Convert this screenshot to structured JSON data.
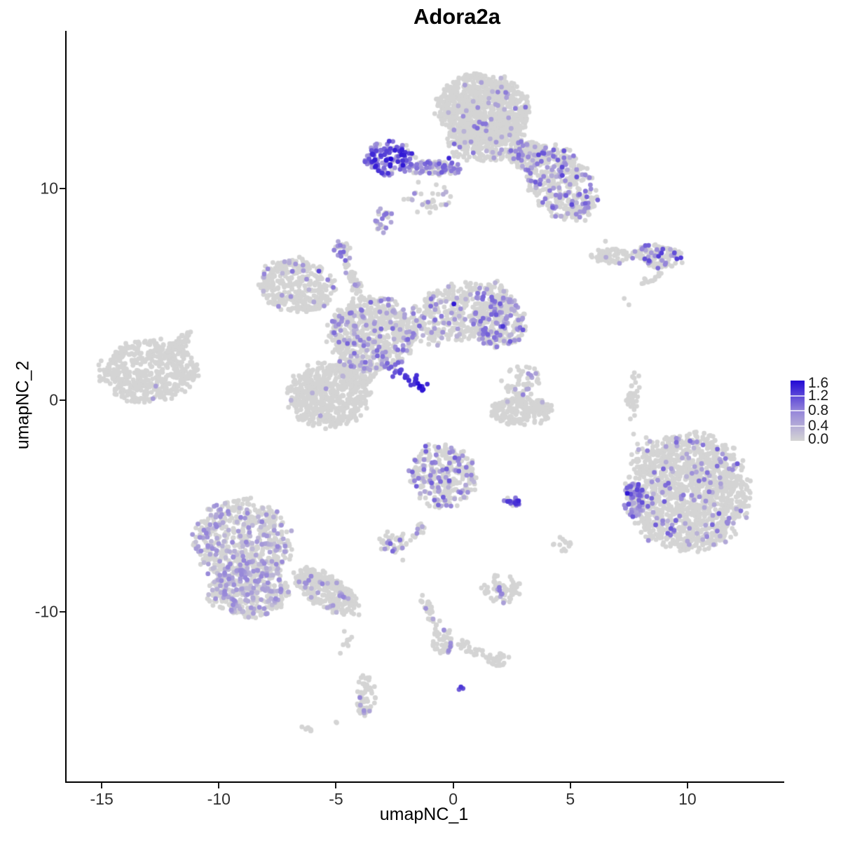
{
  "chart_data": {
    "type": "scatter",
    "title": "Adora2a",
    "xlabel": "umapNC_1",
    "ylabel": "umapNC_2",
    "x_ticks": [
      -15,
      -10,
      -5,
      0,
      5,
      10
    ],
    "y_ticks": [
      10,
      0,
      -10
    ],
    "x_range": [
      -16.5,
      14.1
    ],
    "y_range": [
      -18.0,
      17.4
    ],
    "grid": false,
    "legend": {
      "position": "right",
      "min": 0.0,
      "max": 1.6,
      "ticks": [
        "1.6",
        "1.2",
        "0.8",
        "0.4",
        "0.0"
      ],
      "inner_tick_values": [
        0.4,
        0.8,
        1.2
      ]
    },
    "colors": {
      "low": "#d4d4d4",
      "mid": "#9484da",
      "high": "#2209d5",
      "background": "#ffffff",
      "axis": "#000000"
    },
    "point_radius": 3.4,
    "clusters": [
      {
        "name": "top-cap-upper",
        "x": 1.28,
        "y": 13.71,
        "rx": 1.97,
        "ry": 1.66,
        "rot": 0,
        "n": 950,
        "f": 0.05,
        "v": [
          0.3,
          1.0
        ]
      },
      {
        "name": "top-cap-lower",
        "x": 1.43,
        "y": 12.15,
        "rx": 1.73,
        "ry": 0.93,
        "rot": 0,
        "n": 280,
        "f": 0.06,
        "v": [
          0.3,
          1.0
        ]
      },
      {
        "name": "top-right-wing",
        "x": 4.57,
        "y": 10.26,
        "rx": 1.85,
        "ry": 1.39,
        "rot": 50,
        "n": 420,
        "f": 0.22,
        "v": [
          0.3,
          1.2
        ]
      },
      {
        "name": "top-wing-connector",
        "x": 3.22,
        "y": 11.59,
        "rx": 0.84,
        "ry": 0.73,
        "rot": 0,
        "n": 140,
        "f": 0.18,
        "v": [
          0.3,
          1.0
        ]
      },
      {
        "name": "top-purple-bridge",
        "x": -0.75,
        "y": 10.96,
        "rx": 1.19,
        "ry": 0.33,
        "rot": 0,
        "n": 90,
        "f": 0.5,
        "v": [
          0.4,
          1.1
        ]
      },
      {
        "name": "top-dense-purple-blob",
        "x": -2.69,
        "y": 11.42,
        "rx": 1.07,
        "ry": 0.79,
        "rot": 0,
        "n": 130,
        "f": 0.82,
        "v": [
          0.5,
          1.5
        ]
      },
      {
        "name": "below-cap-scatter",
        "x": -1.04,
        "y": 9.6,
        "rx": 1.01,
        "ry": 0.86,
        "rot": 0,
        "n": 35,
        "f": 0.15,
        "v": [
          0.3,
          0.9
        ]
      },
      {
        "name": "small-blob-8p5",
        "x": -2.99,
        "y": 8.51,
        "rx": 0.42,
        "ry": 0.6,
        "rot": 0,
        "n": 28,
        "f": 0.32,
        "v": [
          0.4,
          1.0
        ]
      },
      {
        "name": "right-chain-left",
        "x": 6.66,
        "y": 6.82,
        "rx": 0.78,
        "ry": 0.36,
        "rot": 0,
        "n": 55,
        "f": 0.04,
        "v": [
          0.4,
          0.7
        ]
      },
      {
        "name": "right-chain-right",
        "x": 8.69,
        "y": 6.79,
        "rx": 1.13,
        "ry": 0.56,
        "rot": 5,
        "n": 120,
        "f": 0.3,
        "v": [
          0.4,
          1.3
        ]
      },
      {
        "name": "right-small-streak",
        "x": 8.45,
        "y": 5.76,
        "rx": 0.51,
        "ry": 0.2,
        "rot": -31,
        "n": 14,
        "f": 0,
        "v": [
          0,
          0
        ]
      },
      {
        "name": "central-topleft-lobe",
        "x": -6.66,
        "y": 5.43,
        "rx": 1.61,
        "ry": 1.26,
        "rot": 8,
        "n": 360,
        "f": 0.05,
        "v": [
          0.3,
          0.9
        ]
      },
      {
        "name": "central-upper-knob",
        "x": -4.69,
        "y": 7.02,
        "rx": 0.39,
        "ry": 0.56,
        "rot": 0,
        "n": 26,
        "f": 0.45,
        "v": [
          0.4,
          1.0
        ]
      },
      {
        "name": "central-upper-arm",
        "x": -4.21,
        "y": 5.56,
        "rx": 0.9,
        "ry": 0.26,
        "rot": 67,
        "n": 40,
        "f": 0.12,
        "v": [
          0.3,
          0.8
        ]
      },
      {
        "name": "central-core",
        "x": -3.49,
        "y": 3.11,
        "rx": 1.85,
        "ry": 1.72,
        "rot": 0,
        "n": 650,
        "f": 0.16,
        "v": [
          0.3,
          1.0
        ]
      },
      {
        "name": "central-right-arm",
        "x": 0.24,
        "y": 4.14,
        "rx": 2.39,
        "ry": 1.32,
        "rot": -17,
        "n": 420,
        "f": 0.13,
        "v": [
          0.3,
          1.0
        ]
      },
      {
        "name": "central-right-blob",
        "x": 1.94,
        "y": 3.64,
        "rx": 1.19,
        "ry": 1.19,
        "rot": 0,
        "n": 240,
        "f": 0.28,
        "v": [
          0.3,
          1.1
        ]
      },
      {
        "name": "central-bottomleft-lobe",
        "x": -5.34,
        "y": 0.23,
        "rx": 1.73,
        "ry": 1.52,
        "rot": 0,
        "n": 560,
        "f": 0.012,
        "v": [
          0.3,
          0.7
        ]
      },
      {
        "name": "central-lower-connector",
        "x": -4.09,
        "y": 1.23,
        "rx": 0.75,
        "ry": 0.66,
        "rot": 0,
        "n": 80,
        "f": 0.1,
        "v": [
          0.3,
          0.8
        ]
      },
      {
        "name": "left-island",
        "x": -12.96,
        "y": 1.39,
        "rx": 2.09,
        "ry": 1.46,
        "rot": -4,
        "n": 520,
        "f": 0,
        "v": [
          0,
          0
        ]
      },
      {
        "name": "left-island-arm",
        "x": -11.67,
        "y": 2.75,
        "rx": 0.66,
        "ry": 0.26,
        "rot": -34,
        "n": 40,
        "f": 0,
        "v": [
          0,
          0
        ]
      },
      {
        "name": "mid-right-upper-loose",
        "x": 2.93,
        "y": 0.93,
        "rx": 0.84,
        "ry": 0.79,
        "rot": 0,
        "n": 55,
        "f": 0.2,
        "v": [
          0.4,
          1.0
        ]
      },
      {
        "name": "mid-right-crescent",
        "x": 2.93,
        "y": -0.53,
        "rx": 1.37,
        "ry": 0.66,
        "rot": 0,
        "n": 200,
        "f": 0.008,
        "v": [
          0.3,
          0.6
        ]
      },
      {
        "name": "thin-vertical-streak",
        "x": 7.7,
        "y": 0.2,
        "rx": 0.27,
        "ry": 1.13,
        "rot": 8,
        "n": 36,
        "f": 0.03,
        "v": [
          0.3,
          0.6
        ]
      },
      {
        "name": "center-bottom-arrowhead",
        "x": -0.45,
        "y": -3.58,
        "rx": 1.43,
        "ry": 1.52,
        "rot": 0,
        "n": 300,
        "f": 0.26,
        "v": [
          0.3,
          1.1
        ]
      },
      {
        "name": "arrowhead-tail",
        "x": -1.49,
        "y": -6.23,
        "rx": 0.48,
        "ry": 0.23,
        "rot": -52,
        "n": 16,
        "f": 0.25,
        "v": [
          0.4,
          0.9
        ]
      },
      {
        "name": "small-left-blob",
        "x": -2.6,
        "y": -6.72,
        "rx": 0.72,
        "ry": 0.53,
        "rot": 0,
        "n": 40,
        "f": 0.12,
        "v": [
          0.4,
          1.0
        ]
      },
      {
        "name": "dense-purple-pair",
        "x": 2.54,
        "y": -4.8,
        "rx": 0.39,
        "ry": 0.2,
        "rot": 0,
        "n": 22,
        "f": 0.85,
        "v": [
          0.6,
          1.4
        ]
      },
      {
        "name": "bottom-right-island",
        "x": 10.06,
        "y": -4.37,
        "rx": 2.57,
        "ry": 2.75,
        "rot": 0,
        "n": 1350,
        "f": 0.08,
        "v": [
          0.3,
          1.1
        ]
      },
      {
        "name": "bottom-right-left-patch",
        "x": 7.73,
        "y": -4.7,
        "rx": 0.45,
        "ry": 0.83,
        "rot": 0,
        "n": 85,
        "f": 0.6,
        "v": [
          0.4,
          1.2
        ]
      },
      {
        "name": "bottom-right-trail",
        "x": 8.15,
        "y": -2.25,
        "rx": 0.75,
        "ry": 0.33,
        "rot": -40,
        "n": 12,
        "f": 0.25,
        "v": [
          0.4,
          0.8
        ]
      },
      {
        "name": "bottom-left-island-upper",
        "x": -9.01,
        "y": -6.72,
        "rx": 2.09,
        "ry": 2.05,
        "rot": 0,
        "n": 600,
        "f": 0.3,
        "v": [
          0.2,
          0.8
        ]
      },
      {
        "name": "bottom-left-island-lower",
        "x": -8.72,
        "y": -9.04,
        "rx": 1.73,
        "ry": 1.26,
        "rot": 0,
        "n": 350,
        "f": 0.3,
        "v": [
          0.2,
          0.8
        ]
      },
      {
        "name": "bottom-left-tail",
        "x": -5.43,
        "y": -9.04,
        "rx": 1.64,
        "ry": 0.76,
        "rot": 32,
        "n": 260,
        "f": 0.1,
        "v": [
          0.3,
          0.8
        ]
      },
      {
        "name": "dot-chain",
        "x": -4.57,
        "y": -11.36,
        "rx": 0.3,
        "ry": 0.73,
        "rot": 15,
        "n": 8,
        "f": 0,
        "v": [
          0,
          0
        ]
      },
      {
        "name": "bottom-vertical-blob",
        "x": -3.73,
        "y": -13.97,
        "rx": 0.45,
        "ry": 1.03,
        "rot": 0,
        "n": 60,
        "f": 0.1,
        "v": [
          0.4,
          0.8
        ]
      },
      {
        "name": "y-cluster-stem",
        "x": -0.96,
        "y": -10.03,
        "rx": 0.9,
        "ry": 0.26,
        "rot": 64,
        "n": 30,
        "f": 0.1,
        "v": [
          0.4,
          0.8
        ]
      },
      {
        "name": "y-cluster-blob",
        "x": -0.45,
        "y": -11.39,
        "rx": 0.48,
        "ry": 0.6,
        "rot": 0,
        "n": 50,
        "f": 0.12,
        "v": [
          0.4,
          0.8
        ]
      },
      {
        "name": "y-cluster-arm",
        "x": 0.81,
        "y": -11.75,
        "rx": 0.84,
        "ry": 0.26,
        "rot": 23,
        "n": 26,
        "f": 0,
        "v": [
          0,
          0
        ]
      },
      {
        "name": "y-cluster-end",
        "x": 1.94,
        "y": -12.25,
        "rx": 0.48,
        "ry": 0.36,
        "rot": 0,
        "n": 30,
        "f": 0,
        "v": [
          0,
          0
        ]
      },
      {
        "name": "bottom-mid-cluster",
        "x": 2.06,
        "y": -8.87,
        "rx": 0.81,
        "ry": 0.7,
        "rot": 0,
        "n": 60,
        "f": 0.1,
        "v": [
          0.4,
          0.9
        ]
      },
      {
        "name": "tiny-streak-bottom",
        "x": -6.24,
        "y": -15.56,
        "rx": 0.27,
        "ry": 0.13,
        "rot": 25,
        "n": 8,
        "f": 0,
        "v": [
          0,
          0
        ]
      },
      {
        "name": "small-gray-blob-right",
        "x": 4.6,
        "y": -6.82,
        "rx": 0.45,
        "ry": 0.36,
        "rot": 0,
        "n": 14,
        "f": 0,
        "v": [
          0,
          0
        ]
      }
    ],
    "streaks": [
      {
        "name": "dense-diagonal-streak",
        "x1": -2.96,
        "y1": 1.99,
        "x2": -1.34,
        "y2": 0.56,
        "w": 4,
        "n": 30,
        "v": [
          0.7,
          1.6
        ]
      }
    ],
    "accents": [
      {
        "x": -12.69,
        "y": 0.66,
        "v": 0.55
      },
      {
        "x": -12.81,
        "y": 0.07,
        "v": 0.55
      },
      {
        "x": -2.66,
        "y": 11.39,
        "v": 1.6
      },
      {
        "x": -2.36,
        "y": 11.26,
        "v": 1.35
      },
      {
        "x": -0.18,
        "y": 11.42,
        "v": 1.4
      },
      {
        "x": 0.03,
        "y": 4.54,
        "v": 1.5
      },
      {
        "x": -5.73,
        "y": 6.09,
        "v": 1.2
      },
      {
        "x": 2.12,
        "y": 3.48,
        "v": 1.3
      },
      {
        "x": 7.43,
        "y": -4.4,
        "v": 1.5
      },
      {
        "x": 0.33,
        "y": -13.54,
        "v": 1.3
      },
      {
        "x": 0.42,
        "y": -13.61,
        "v": 1.15
      },
      {
        "x": 0.25,
        "y": -13.66,
        "v": 1.05
      },
      {
        "x": 2.63,
        "y": -4.85,
        "v": 1.3
      },
      {
        "x": 9.72,
        "y": 6.72,
        "v": 1.25
      },
      {
        "x": 7.1,
        "y": 6.46,
        "v": 0.55
      },
      {
        "x": -1.42,
        "y": 0.66,
        "v": 1.6
      },
      {
        "x": -1.51,
        "y": 0.79,
        "v": 1.5
      }
    ],
    "singles": [
      {
        "x": 7.3,
        "y": 4.8
      },
      {
        "x": 7.5,
        "y": 4.5
      },
      {
        "x": 7.7,
        "y": -1.6
      },
      {
        "x": 7.6,
        "y": -3.0
      },
      {
        "x": -5.0,
        "y": -15.2
      },
      {
        "x": 6.5,
        "y": 7.5
      },
      {
        "x": -2.15,
        "y": -7.55
      },
      {
        "x": -4.97,
        "y": -15.23
      }
    ]
  }
}
